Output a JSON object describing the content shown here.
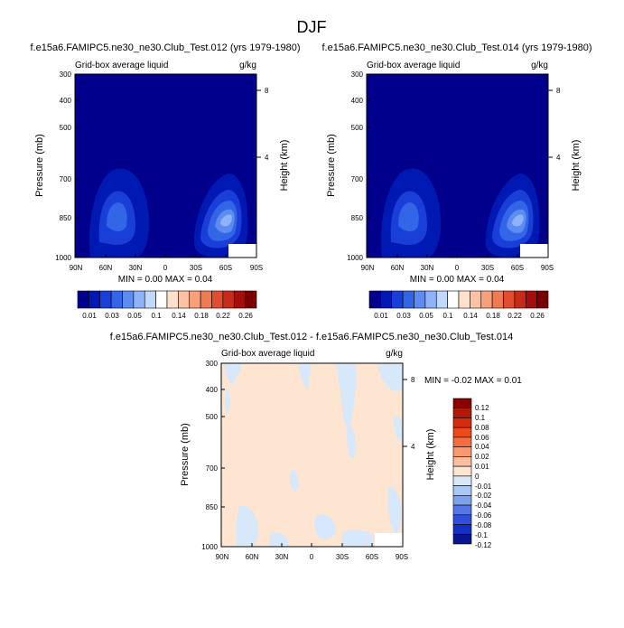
{
  "page": {
    "title": "DJF"
  },
  "chart_data": [
    {
      "type": "contour",
      "title": "f.e15a6.FAMIPC5.ne30_ne30.Club_Test.012 (yrs 1979-1980)",
      "subtitle_left": "Grid-box average liquid",
      "subtitle_right": "g/kg",
      "ylabel": "Pressure (mb)",
      "ylabel_right": "Height (km)",
      "x_ticks": [
        "90N",
        "60N",
        "30N",
        "0",
        "30S",
        "60S",
        "90S"
      ],
      "y_ticks": [
        "300",
        "400",
        "500",
        "700",
        "850",
        "1000"
      ],
      "y_right_ticks": [
        "8",
        "4"
      ],
      "stats": "MIN =  0.00  MAX =  0.04",
      "colorbar_labels": [
        "0.01",
        "0.03",
        "0.05",
        "0.1",
        "0.14",
        "0.18",
        "0.22",
        "0.26"
      ],
      "colorbar_colors": [
        "#00008c",
        "#0019b3",
        "#1a3fd9",
        "#3366e6",
        "#5c8cf2",
        "#8fb3fa",
        "#c2d9ff",
        "#ffffff",
        "#ffe0cc",
        "#fcc2a3",
        "#f7a07a",
        "#f07a52",
        "#e04d30",
        "#c72b1a",
        "#a30f0a",
        "#7a0000"
      ]
    },
    {
      "type": "contour",
      "title": "f.e15a6.FAMIPC5.ne30_ne30.Club_Test.014 (yrs 1979-1980)",
      "subtitle_left": "Grid-box average liquid",
      "subtitle_right": "g/kg",
      "ylabel": "Pressure (mb)",
      "ylabel_right": "Height (km)",
      "x_ticks": [
        "90N",
        "60N",
        "30N",
        "0",
        "30S",
        "60S",
        "90S"
      ],
      "y_ticks": [
        "300",
        "400",
        "500",
        "700",
        "850",
        "1000"
      ],
      "y_right_ticks": [
        "8",
        "4"
      ],
      "stats": "MIN =  0.00  MAX =  0.04",
      "colorbar_labels": [
        "0.01",
        "0.03",
        "0.05",
        "0.1",
        "0.14",
        "0.18",
        "0.22",
        "0.26"
      ]
    },
    {
      "type": "contour",
      "title": "f.e15a6.FAMIPC5.ne30_ne30.Club_Test.012 - f.e15a6.FAMIPC5.ne30_ne30.Club_Test.014",
      "subtitle_left": "Grid-box average liquid",
      "subtitle_right": "g/kg",
      "ylabel": "Pressure (mb)",
      "ylabel_right": "Height (km)",
      "x_ticks": [
        "90N",
        "60N",
        "30N",
        "0",
        "30S",
        "60S",
        "90S"
      ],
      "y_ticks": [
        "300",
        "400",
        "500",
        "700",
        "850",
        "1000"
      ],
      "y_right_ticks": [
        "8",
        "4"
      ],
      "stats": "MIN = -0.02  MAX =  0.01",
      "colorbar_labels": [
        "0.12",
        "0.1",
        "0.08",
        "0.06",
        "0.04",
        "0.02",
        "0.01",
        "0",
        "-0.01",
        "-0.02",
        "-0.04",
        "-0.06",
        "-0.08",
        "-0.1",
        "-0.12"
      ],
      "colorbar_colors": [
        "#8b0000",
        "#b01a05",
        "#d42c0c",
        "#ec4a1c",
        "#f66e42",
        "#fa9870",
        "#fbbf9f",
        "#fde5d1",
        "#d7e8fb",
        "#a9c9f5",
        "#7ea3ee",
        "#5577e6",
        "#2f4fdc",
        "#1430c4",
        "#07158f"
      ]
    }
  ]
}
